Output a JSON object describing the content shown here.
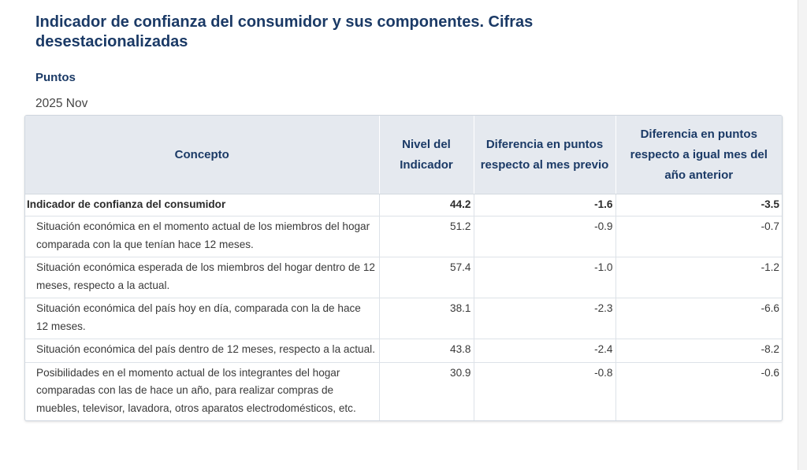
{
  "title": "Indicador de confianza del consumidor y sus componentes. Cifras desestacionalizadas",
  "unit": "Puntos",
  "period": "2025 Nov",
  "table": {
    "headers": [
      "Concepto",
      "Nivel del Indicador",
      "Diferencia en puntos respecto al mes previo",
      "Diferencia en puntos respecto a igual mes del año anterior"
    ],
    "rows": [
      {
        "concepto": "Indicador de confianza del consumidor",
        "nivel": "44.2",
        "dif_mes": "-1.6",
        "dif_anio": "-3.5"
      },
      {
        "concepto": "Situación económica en el momento actual de los miembros del hogar comparada con la que tenían hace 12 meses.",
        "nivel": "51.2",
        "dif_mes": "-0.9",
        "dif_anio": "-0.7"
      },
      {
        "concepto": "Situación económica esperada de los miembros del hogar dentro de 12 meses, respecto a la actual.",
        "nivel": "57.4",
        "dif_mes": "-1.0",
        "dif_anio": "-1.2"
      },
      {
        "concepto": "Situación económica del país hoy en día, comparada con la de hace 12 meses.",
        "nivel": "38.1",
        "dif_mes": "-2.3",
        "dif_anio": "-6.6"
      },
      {
        "concepto": "Situación económica del país dentro de 12 meses, respecto a la actual.",
        "nivel": "43.8",
        "dif_mes": "-2.4",
        "dif_anio": "-8.2"
      },
      {
        "concepto": "Posibilidades en el momento actual de los integrantes del hogar comparadas con las de hace un año, para realizar compras de muebles, televisor, lavadora, otros aparatos electrodomésticos, etc.",
        "nivel": "30.9",
        "dif_mes": "-0.8",
        "dif_anio": "-0.6"
      }
    ]
  },
  "colors": {
    "title": "#1b3a66",
    "header_bg": "#e5e9ef",
    "border": "#dde2e8"
  }
}
